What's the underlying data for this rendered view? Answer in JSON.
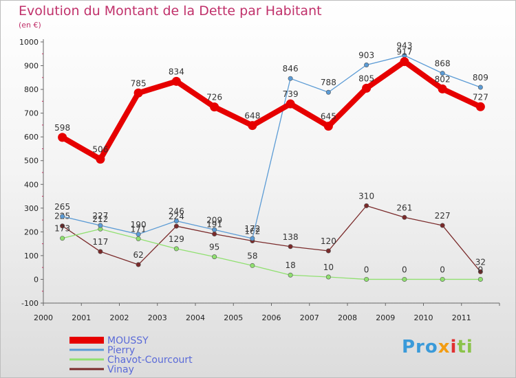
{
  "title": "Evolution du Montant de la Dette par Habitant",
  "subtitle": "(en €)",
  "logo": {
    "p1": "Pro",
    "p2": "x",
    "p3": "i",
    "p4": "ti"
  },
  "chart_data": {
    "type": "line",
    "x": [
      "2000",
      "2001",
      "2002",
      "2003",
      "2004",
      "2005",
      "2006",
      "2007",
      "2008",
      "2009",
      "2010",
      "2011"
    ],
    "ylim": [
      -100,
      1000
    ],
    "yticks": [
      -100,
      0,
      100,
      200,
      300,
      400,
      500,
      600,
      700,
      800,
      900,
      1000
    ],
    "grid": false,
    "legend": "bottom-left",
    "series": [
      {
        "name": "MOUSSY",
        "color": "#e60000",
        "values": [
          598,
          506,
          785,
          834,
          726,
          648,
          739,
          645,
          805,
          917,
          802,
          727
        ]
      },
      {
        "name": "Pierry",
        "color": "#5b9bd5",
        "values": [
          265,
          227,
          190,
          246,
          209,
          172,
          846,
          788,
          903,
          943,
          868,
          809
        ]
      },
      {
        "name": "Chavot-Courcourt",
        "color": "#90e070",
        "values": [
          173,
          212,
          171,
          129,
          95,
          58,
          18,
          10,
          0,
          0,
          0,
          0
        ]
      },
      {
        "name": "Vinay",
        "color": "#7a2a2a",
        "values": [
          225,
          117,
          62,
          224,
          191,
          162,
          138,
          120,
          310,
          261,
          227,
          32
        ]
      }
    ]
  }
}
